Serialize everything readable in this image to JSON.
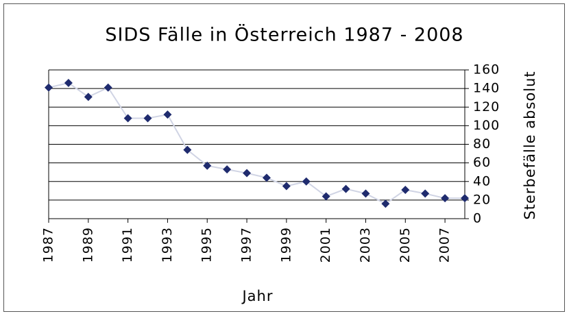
{
  "chart_data": {
    "type": "line",
    "title": "SIDS Fälle in Österreich 1987 - 2008",
    "x_label": "Jahr",
    "y_label": "Sterbefälle absolut",
    "x": [
      1987,
      1988,
      1989,
      1990,
      1991,
      1992,
      1993,
      1994,
      1995,
      1996,
      1997,
      1998,
      1999,
      2000,
      2001,
      2002,
      2003,
      2004,
      2005,
      2006,
      2007,
      2008
    ],
    "series": [
      {
        "name": "SIDS Fälle",
        "color": "#1f2b6e",
        "line_color": "#d0d4e4",
        "values": [
          141,
          146,
          131,
          141,
          108,
          108,
          112,
          74,
          57,
          53,
          49,
          44,
          35,
          40,
          24,
          32,
          27,
          16,
          31,
          27,
          22,
          22
        ]
      }
    ],
    "xlim": [
      1987,
      2008
    ],
    "xticks": [
      1987,
      1989,
      1991,
      1993,
      1995,
      1997,
      1999,
      2001,
      2003,
      2005,
      2007
    ],
    "ylim": [
      0,
      160
    ],
    "yticks": [
      0,
      20,
      40,
      60,
      80,
      100,
      120,
      140,
      160
    ],
    "grid": true,
    "y_axis_side": "right"
  }
}
